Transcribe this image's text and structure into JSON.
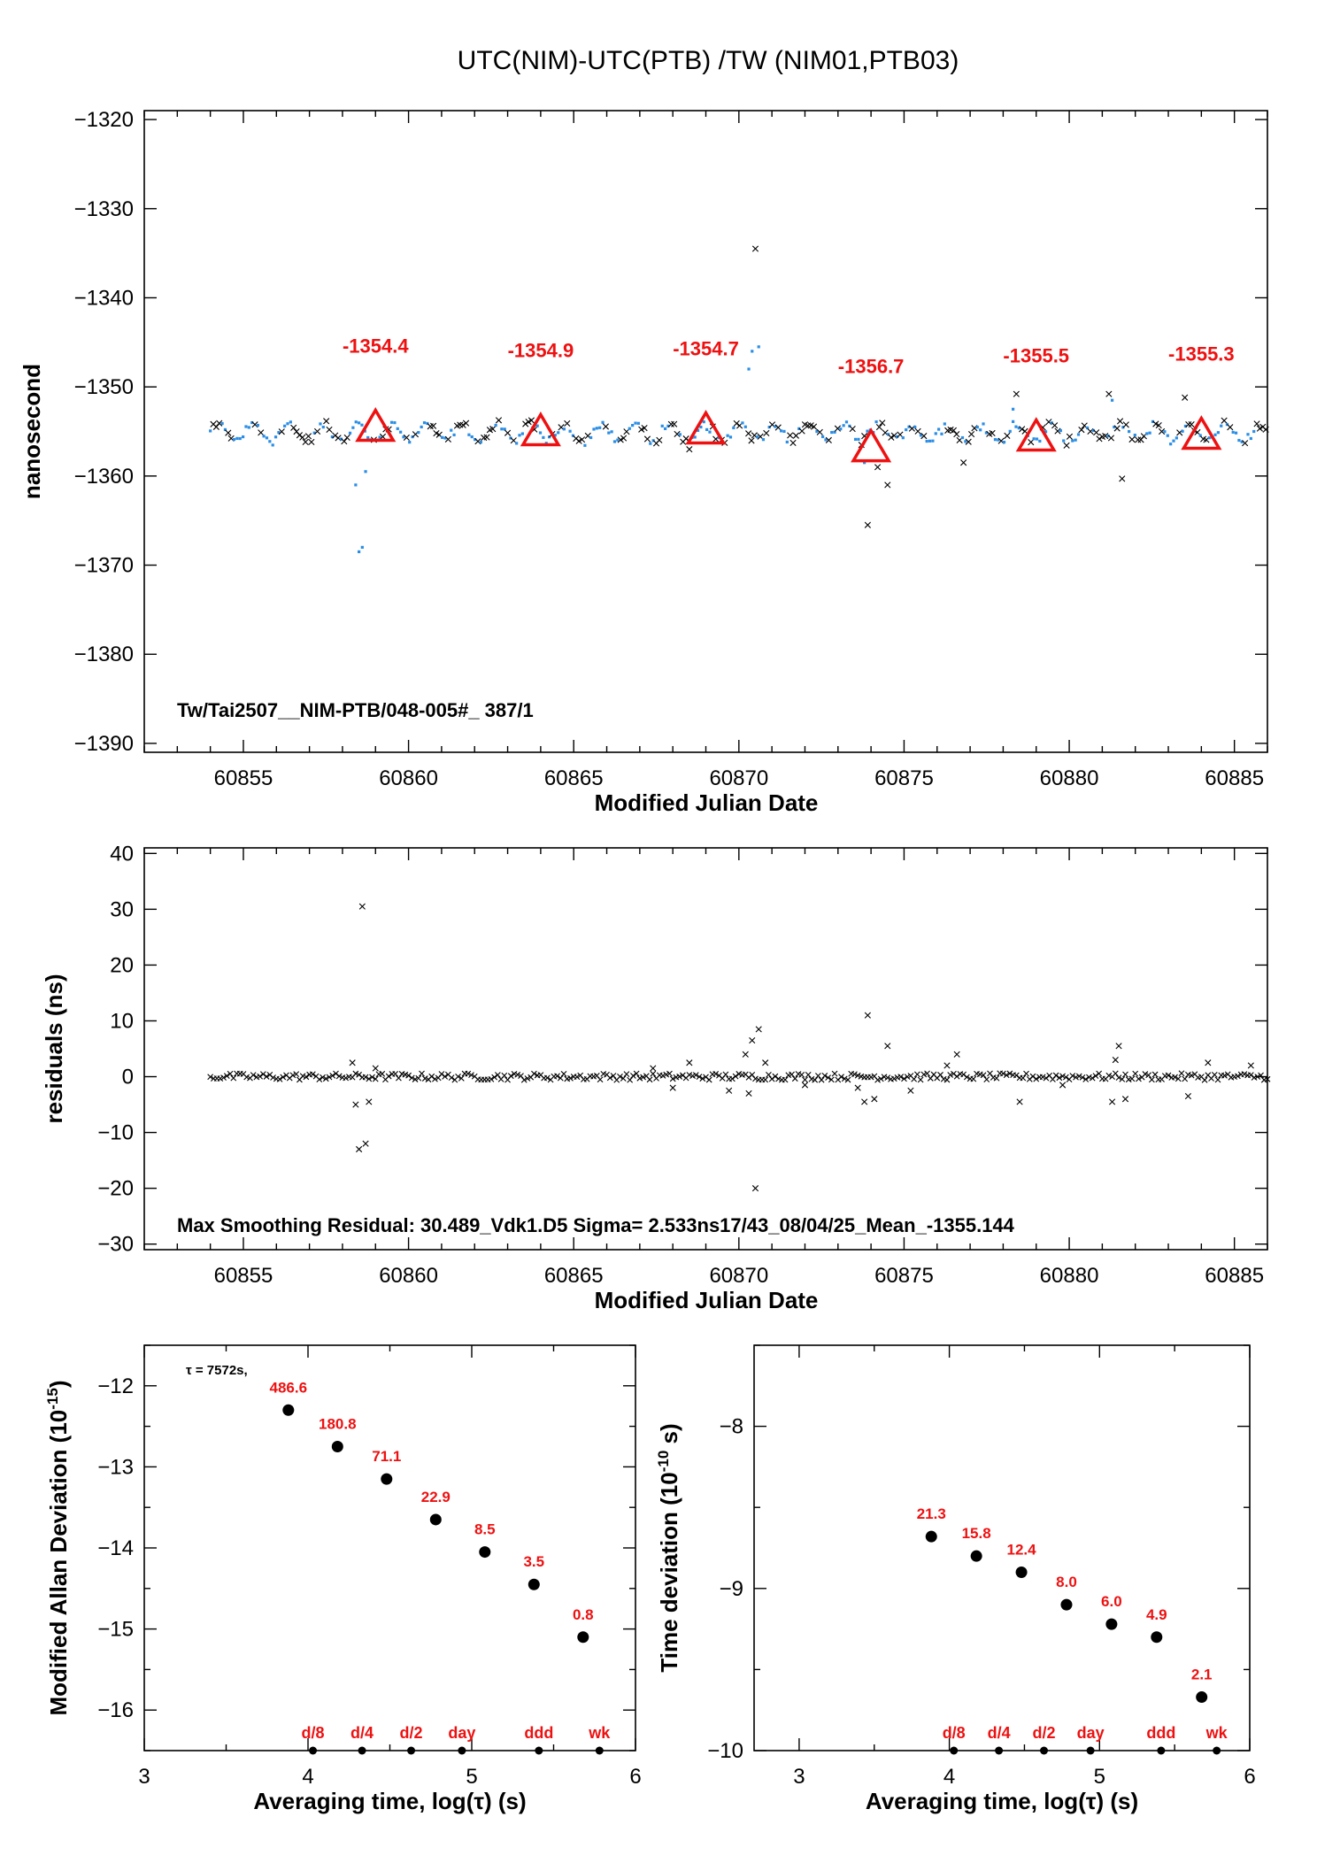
{
  "title": "UTC(NIM)-UTC(PTB)  /TW  (NIM01,PTB03)",
  "colors": {
    "red": "#ee1111",
    "blue": "#2a8ee6",
    "black": "#000000"
  },
  "chart_data": [
    {
      "type": "scatter",
      "ylabel": "nanosecond",
      "xlabel": "Modified Julian Date",
      "xlim": [
        60852,
        60886
      ],
      "ylim": [
        -1391,
        -1319
      ],
      "xticks": [
        60855,
        60860,
        60865,
        60870,
        60875,
        60880,
        60885
      ],
      "yticks": [
        -1320,
        -1330,
        -1340,
        -1350,
        -1360,
        -1370,
        -1380,
        -1390
      ],
      "annotation": "Tw/Tai2507__NIM-PTB/048-005#_  387/1",
      "baseline": -1355.144,
      "daily_means": [
        {
          "x": 60859,
          "y": -1354.4,
          "label": "-1354.4"
        },
        {
          "x": 60864,
          "y": -1354.9,
          "label": "-1354.9"
        },
        {
          "x": 60869,
          "y": -1354.7,
          "label": "-1354.7"
        },
        {
          "x": 60874,
          "y": -1356.7,
          "label": "-1356.7"
        },
        {
          "x": 60879,
          "y": -1355.5,
          "label": "-1355.5"
        },
        {
          "x": 60884,
          "y": -1355.3,
          "label": "-1355.3"
        }
      ],
      "outliers_blue": [
        {
          "x": 60858.4,
          "y": -1361.0
        },
        {
          "x": 60858.5,
          "y": -1368.5
        },
        {
          "x": 60858.6,
          "y": -1368.0
        },
        {
          "x": 60858.7,
          "y": -1359.5
        },
        {
          "x": 60870.3,
          "y": -1348.0
        },
        {
          "x": 60870.4,
          "y": -1346.0
        },
        {
          "x": 60870.6,
          "y": -1345.5
        },
        {
          "x": 60873.8,
          "y": -1358.5
        },
        {
          "x": 60878.3,
          "y": -1352.5
        },
        {
          "x": 60881.3,
          "y": -1351.5
        }
      ],
      "outliers_black": [
        {
          "x": 60870.5,
          "y": -1334.5
        },
        {
          "x": 60873.9,
          "y": -1365.5
        },
        {
          "x": 60874.5,
          "y": -1361.0
        },
        {
          "x": 60876.8,
          "y": -1358.5
        },
        {
          "x": 60878.4,
          "y": -1350.8
        },
        {
          "x": 60881.2,
          "y": -1350.8
        },
        {
          "x": 60881.6,
          "y": -1360.3
        },
        {
          "x": 60883.5,
          "y": -1351.2
        },
        {
          "x": 60874.2,
          "y": -1359.0
        },
        {
          "x": 60868.5,
          "y": -1357.0
        }
      ]
    },
    {
      "type": "scatter",
      "ylabel": "residuals (ns)",
      "xlabel": "Modified Julian Date",
      "xlim": [
        60852,
        60886
      ],
      "ylim": [
        -31,
        41
      ],
      "xticks": [
        60855,
        60860,
        60865,
        60870,
        60875,
        60880,
        60885
      ],
      "yticks": [
        40,
        30,
        20,
        10,
        0,
        -10,
        -20,
        -30
      ],
      "annotation": "Max Smoothing Residual: 30.489_Vdk1.D5  Sigma= 2.533ns17/43_08/04/25_Mean_-1355.144",
      "outliers": [
        {
          "x": 60858.6,
          "y": 30.5
        },
        {
          "x": 60858.3,
          "y": 2.5
        },
        {
          "x": 60858.4,
          "y": -5.0
        },
        {
          "x": 60858.5,
          "y": -13.0
        },
        {
          "x": 60858.7,
          "y": -12.0
        },
        {
          "x": 60858.8,
          "y": -4.5
        },
        {
          "x": 60859.0,
          "y": 1.5
        },
        {
          "x": 60870.2,
          "y": 4.0
        },
        {
          "x": 60870.4,
          "y": 6.5
        },
        {
          "x": 60870.6,
          "y": 8.5
        },
        {
          "x": 60870.5,
          "y": -20.0
        },
        {
          "x": 60870.3,
          "y": -3.0
        },
        {
          "x": 60870.8,
          "y": 2.5
        },
        {
          "x": 60873.9,
          "y": 11.0
        },
        {
          "x": 60873.8,
          "y": -4.5
        },
        {
          "x": 60874.1,
          "y": -4.0
        },
        {
          "x": 60874.5,
          "y": 5.5
        },
        {
          "x": 60873.6,
          "y": -2.0
        },
        {
          "x": 60876.6,
          "y": 4.0
        },
        {
          "x": 60876.3,
          "y": 2.0
        },
        {
          "x": 60878.5,
          "y": -4.5
        },
        {
          "x": 60881.5,
          "y": 5.5
        },
        {
          "x": 60881.3,
          "y": -4.5
        },
        {
          "x": 60881.7,
          "y": -4.0
        },
        {
          "x": 60881.4,
          "y": 3.0
        },
        {
          "x": 60883.6,
          "y": -3.5
        },
        {
          "x": 60884.2,
          "y": 2.5
        },
        {
          "x": 60885.5,
          "y": 2.0
        },
        {
          "x": 60867.4,
          "y": 1.5
        },
        {
          "x": 60868.0,
          "y": -2.0
        },
        {
          "x": 60868.5,
          "y": 2.5
        },
        {
          "x": 60869.7,
          "y": -2.5
        },
        {
          "x": 60872.0,
          "y": -1.5
        },
        {
          "x": 60875.2,
          "y": -2.5
        },
        {
          "x": 60879.8,
          "y": -1.5
        }
      ]
    },
    {
      "type": "scatter",
      "ylabel": "Modified Allan Deviation (10",
      "ylabel_sup": "-15",
      "ylabel_end": ")",
      "xlabel": "Averaging time, log(τ) (s)",
      "xlim": [
        3,
        6
      ],
      "ylim": [
        -16.5,
        -11.5
      ],
      "xticks": [
        3,
        4,
        5,
        6
      ],
      "yticks": [
        -12,
        -13,
        -14,
        -15,
        -16
      ],
      "tau_note": "τ = 7572s,",
      "points": [
        {
          "x": 3.88,
          "y": -12.3,
          "label": "486.6"
        },
        {
          "x": 4.18,
          "y": -12.75,
          "label": "180.8"
        },
        {
          "x": 4.48,
          "y": -13.15,
          "label": "71.1"
        },
        {
          "x": 4.78,
          "y": -13.65,
          "label": "22.9"
        },
        {
          "x": 5.08,
          "y": -14.05,
          "label": "8.5"
        },
        {
          "x": 5.38,
          "y": -14.45,
          "label": "3.5"
        },
        {
          "x": 5.68,
          "y": -15.1,
          "label": "0.8"
        }
      ],
      "markers": [
        {
          "x": 4.03,
          "label": "d/8"
        },
        {
          "x": 4.33,
          "label": "d/4"
        },
        {
          "x": 4.63,
          "label": "d/2"
        },
        {
          "x": 4.94,
          "label": "day"
        },
        {
          "x": 5.41,
          "label": "ddd"
        },
        {
          "x": 5.78,
          "label": "wk"
        }
      ]
    },
    {
      "type": "scatter",
      "ylabel": "Time deviation (10",
      "ylabel_sup": "-10",
      "ylabel_end": " s)",
      "xlabel": "Averaging time, log(τ) (s)",
      "xlim": [
        2.7,
        6
      ],
      "ylim": [
        -10,
        -7.5
      ],
      "xticks": [
        3,
        4,
        5,
        6
      ],
      "yticks": [
        -8,
        -9,
        -10
      ],
      "points": [
        {
          "x": 3.88,
          "y": -8.68,
          "label": "21.3"
        },
        {
          "x": 4.18,
          "y": -8.8,
          "label": "15.8"
        },
        {
          "x": 4.48,
          "y": -8.9,
          "label": "12.4"
        },
        {
          "x": 4.78,
          "y": -9.1,
          "label": "8.0"
        },
        {
          "x": 5.08,
          "y": -9.22,
          "label": "6.0"
        },
        {
          "x": 5.38,
          "y": -9.3,
          "label": "4.9"
        },
        {
          "x": 5.68,
          "y": -9.67,
          "label": "2.1"
        }
      ],
      "markers": [
        {
          "x": 4.03,
          "label": "d/8"
        },
        {
          "x": 4.33,
          "label": "d/4"
        },
        {
          "x": 4.63,
          "label": "d/2"
        },
        {
          "x": 4.94,
          "label": "day"
        },
        {
          "x": 5.41,
          "label": "ddd"
        },
        {
          "x": 5.78,
          "label": "wk"
        }
      ]
    }
  ]
}
